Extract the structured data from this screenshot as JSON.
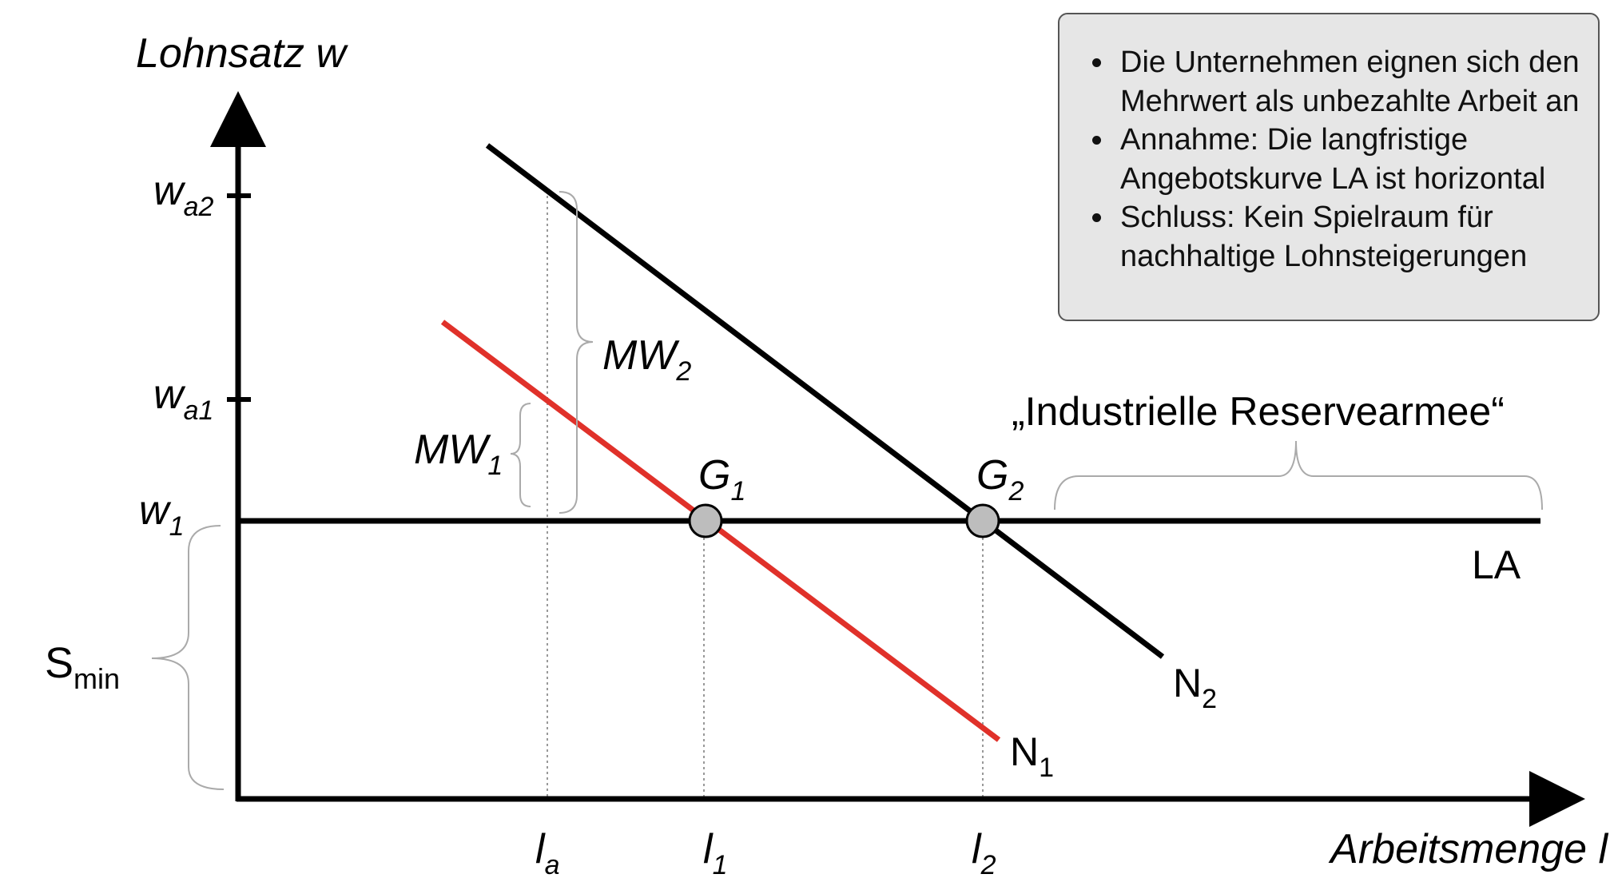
{
  "axes": {
    "y_label": "Lohnsatz w",
    "x_label": "Arbeitsmenge l"
  },
  "y_ticks": [
    {
      "name": "w",
      "sub": "a2"
    },
    {
      "name": "w",
      "sub": "a1"
    },
    {
      "name": "w",
      "sub": "1"
    }
  ],
  "x_ticks": [
    {
      "name": "l",
      "sub": "a"
    },
    {
      "name": "l",
      "sub": "1"
    },
    {
      "name": "l",
      "sub": "2"
    }
  ],
  "curves": {
    "supply": "LA",
    "demand1": {
      "name": "N",
      "sub": "1"
    },
    "demand2": {
      "name": "N",
      "sub": "2"
    }
  },
  "points": {
    "g1": {
      "name": "G",
      "sub": "1"
    },
    "g2": {
      "name": "G",
      "sub": "2"
    }
  },
  "braces": {
    "mw1": {
      "name": "MW",
      "sub": "1"
    },
    "mw2": {
      "name": "MW",
      "sub": "2"
    },
    "smin": {
      "name": "S",
      "sub": "min"
    },
    "reserve": "„Industrielle Reservearmee“"
  },
  "notes": [
    "Die Unternehmen eignen sich den Mehrwert als unbezahlte Arbeit an",
    "Annahme: Die langfristige Angebotskurve LA ist horizontal",
    "Schluss: Kein Spielraum für nachhaltige Lohnsteigerungen"
  ],
  "colors": {
    "demand1": "#e0312a",
    "demand2": "#000000",
    "point_fill": "#bdbdbd",
    "box_bg": "#e6e6e6"
  }
}
